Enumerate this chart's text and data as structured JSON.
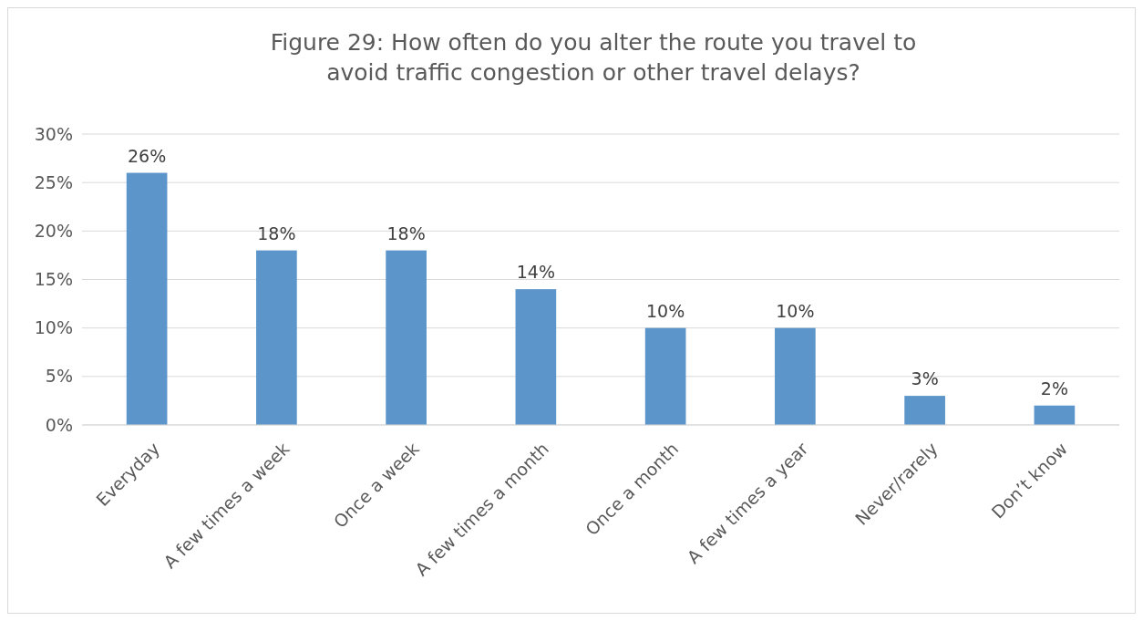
{
  "chart_data": {
    "type": "bar",
    "title": "Figure 29: How often do you alter the route you travel to avoid traffic congestion or other travel delays?",
    "categories": [
      "Everyday",
      "A few times a week",
      "Once a week",
      "A few times a month",
      "Once a month",
      "A few times a year",
      "Never/rarely",
      "Don’t know"
    ],
    "values": [
      26,
      18,
      18,
      14,
      10,
      10,
      3,
      2
    ],
    "value_labels": [
      "26%",
      "18%",
      "18%",
      "14%",
      "10%",
      "10%",
      "3%",
      "2%"
    ],
    "color": "#5b95c9",
    "ylim": [
      0,
      30
    ],
    "yticks": [
      {
        "value": 0,
        "label": "0%"
      },
      {
        "value": 5,
        "label": "5%"
      },
      {
        "value": 10,
        "label": "10%"
      },
      {
        "value": 15,
        "label": "15%"
      },
      {
        "value": 20,
        "label": "20%"
      },
      {
        "value": 25,
        "label": "25%"
      },
      {
        "value": 30,
        "label": "30%"
      }
    ],
    "grid": "y"
  }
}
